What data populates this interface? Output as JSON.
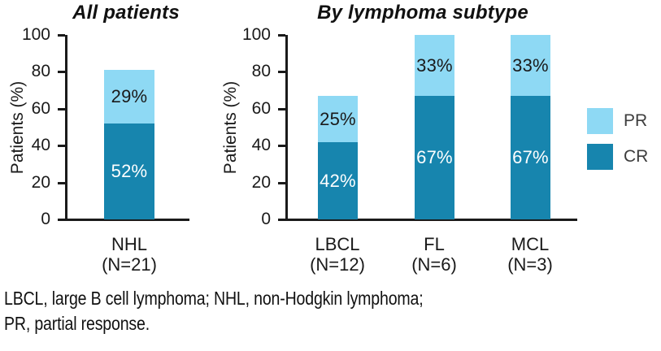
{
  "chart_data": [
    {
      "type": "bar",
      "stacked": true,
      "title": "All patients",
      "ylabel": "Patients (%)",
      "ylim": [
        0,
        100
      ],
      "yticks": [
        0,
        20,
        40,
        60,
        80,
        100
      ],
      "grid": false,
      "legend_position": "none",
      "categories": [
        {
          "label": "NHL",
          "sub": "(N=21)"
        }
      ],
      "series": [
        {
          "name": "CR",
          "color": "#1785ae",
          "label_color": "#ffffff",
          "values": [
            52
          ],
          "labels": [
            "52%"
          ]
        },
        {
          "name": "PR",
          "color": "#8ed9f4",
          "label_color": "#1a1a1a",
          "values": [
            29
          ],
          "labels": [
            "29%"
          ]
        }
      ]
    },
    {
      "type": "bar",
      "stacked": true,
      "title": "By lymphoma subtype",
      "ylabel": "Patients (%)",
      "ylim": [
        0,
        100
      ],
      "yticks": [
        0,
        20,
        40,
        60,
        80,
        100
      ],
      "grid": false,
      "legend_position": "right",
      "categories": [
        {
          "label": "LBCL",
          "sub": "(N=12)"
        },
        {
          "label": "FL",
          "sub": "(N=6)"
        },
        {
          "label": "MCL",
          "sub": "(N=3)"
        }
      ],
      "series": [
        {
          "name": "CR",
          "color": "#1785ae",
          "label_color": "#ffffff",
          "values": [
            42,
            67,
            67
          ],
          "labels": [
            "42%",
            "67%",
            "67%"
          ]
        },
        {
          "name": "PR",
          "color": "#8ed9f4",
          "label_color": "#1a1a1a",
          "values": [
            25,
            33,
            33
          ],
          "labels": [
            "25%",
            "33%",
            "33%"
          ]
        }
      ]
    }
  ],
  "legend": {
    "items": [
      {
        "label": "PR",
        "color": "#8ed9f4"
      },
      {
        "label": "CR",
        "color": "#1785ae"
      }
    ]
  },
  "footnote": {
    "line1": "LBCL, large B cell lymphoma; NHL, non-Hodgkin lymphoma;",
    "line2": "PR, partial response."
  },
  "colors": {
    "pr": "#8ed9f4",
    "cr": "#1785ae",
    "axis": "#1a1a1a",
    "legend_text": "#3d3d3d"
  }
}
